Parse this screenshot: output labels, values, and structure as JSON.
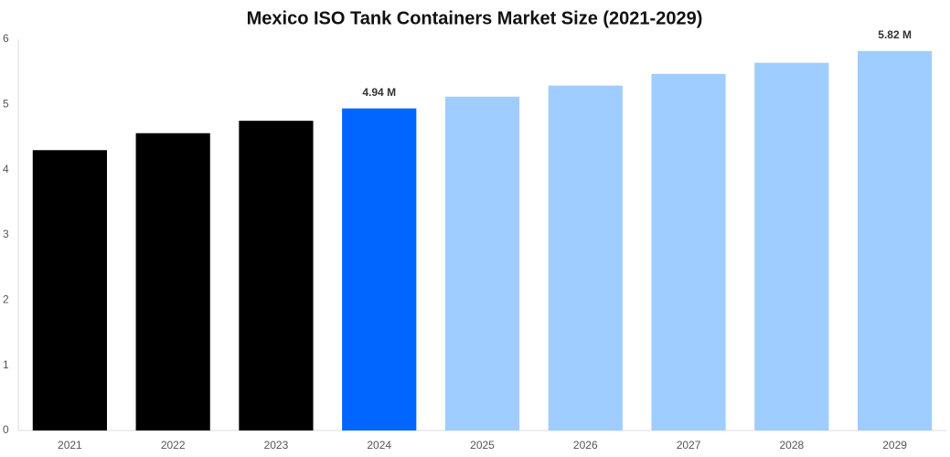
{
  "chart_data": {
    "type": "bar",
    "title": "Mexico ISO Tank Containers Market Size (2021-2029)",
    "categories": [
      "2021",
      "2022",
      "2023",
      "2024",
      "2025",
      "2026",
      "2027",
      "2028",
      "2029"
    ],
    "values": [
      4.3,
      4.56,
      4.75,
      4.94,
      5.12,
      5.29,
      5.47,
      5.64,
      5.82
    ],
    "value_labels": [
      null,
      null,
      null,
      "4.94 M",
      null,
      null,
      null,
      null,
      "5.82 M"
    ],
    "colors": [
      "#000000",
      "#000000",
      "#000000",
      "#0066ff",
      "#a0cdff",
      "#a0cdff",
      "#a0cdff",
      "#a0cdff",
      "#a0cdff"
    ],
    "ylim": [
      0,
      6
    ],
    "yticks": [
      0,
      1,
      2,
      3,
      4,
      5,
      6
    ],
    "grid": false
  }
}
